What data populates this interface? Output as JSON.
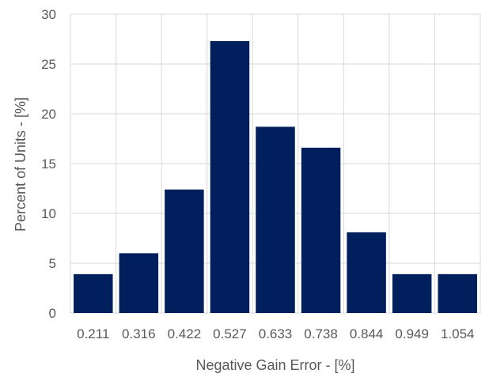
{
  "chart_data": {
    "type": "bar",
    "title": "",
    "xlabel": "Negative Gain Error - [%]",
    "ylabel": "Percent of Units - [%]",
    "categories": [
      "0.211",
      "0.316",
      "0.422",
      "0.527",
      "0.633",
      "0.738",
      "0.844",
      "0.949",
      "1.054"
    ],
    "values": [
      3.9,
      6.0,
      12.4,
      27.3,
      18.7,
      16.6,
      8.1,
      3.9,
      3.9
    ],
    "ylim": [
      0,
      30
    ],
    "yticks": [
      "0",
      "5",
      "10",
      "15",
      "20",
      "25",
      "30"
    ],
    "grid": true,
    "legend": "none",
    "colors": {
      "bar": "#001f5c",
      "grid": "#d9d9d9",
      "text": "#595959"
    }
  }
}
